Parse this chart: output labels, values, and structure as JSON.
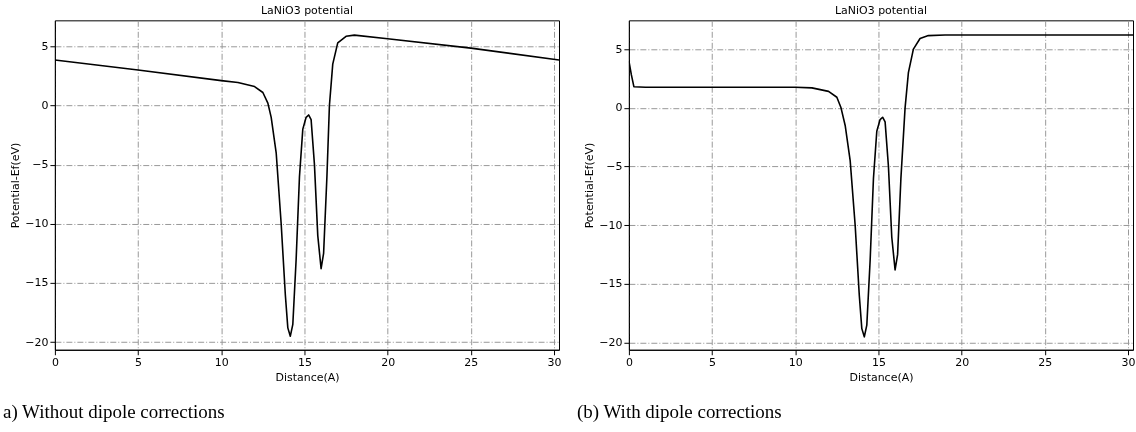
{
  "chart_data": [
    {
      "type": "line",
      "title": "LaNiO3 potential",
      "xlabel": "Distance(A)",
      "ylabel": "Potential-Ef(eV)",
      "annotations": [
        "a) Without dipole corrections"
      ],
      "xlim": [
        0,
        30.3
      ],
      "ylim": [
        -20.65,
        7.2
      ],
      "xticks": [
        0,
        5,
        10,
        15,
        20,
        25,
        30
      ],
      "yticks": [
        -20,
        -15,
        -10,
        -5,
        0,
        5
      ],
      "grid": true,
      "line_style": "solid",
      "series": [
        {
          "color": "#000000",
          "x": [
            0,
            5,
            10,
            11,
            12,
            12.5,
            12.8,
            13,
            13.3,
            13.6,
            13.85,
            14,
            14.15,
            14.3,
            14.5,
            14.7,
            14.9,
            15.1,
            15.25,
            15.4,
            15.6,
            15.8,
            16.0,
            16.15,
            16.35,
            16.5,
            16.7,
            17,
            17.5,
            18,
            20,
            25,
            30.3
          ],
          "values": [
            3.85,
            3.0,
            2.1,
            1.95,
            1.6,
            1.1,
            0.2,
            -1,
            -4,
            -10,
            -16,
            -18.8,
            -19.5,
            -18.5,
            -13,
            -6,
            -2,
            -1,
            -0.8,
            -1.2,
            -5,
            -11,
            -13.8,
            -12.5,
            -6,
            0,
            3.5,
            5.3,
            5.85,
            5.95,
            5.65,
            4.85,
            3.85
          ]
        }
      ]
    },
    {
      "type": "line",
      "title": "LaNiO3 potential",
      "xlabel": "Distance(A)",
      "ylabel": "Potential-Ef(eV)",
      "annotations": [
        "(b) With dipole corrections"
      ],
      "xlim": [
        0,
        30.3
      ],
      "ylim": [
        -20.6,
        7.45
      ],
      "xticks": [
        0,
        5,
        10,
        15,
        20,
        25,
        30
      ],
      "yticks": [
        -20,
        -15,
        -10,
        -5,
        0,
        5
      ],
      "grid": true,
      "line_style": "solid",
      "series": [
        {
          "color": "#000000",
          "x": [
            0,
            0.15,
            0.3,
            1,
            10,
            11,
            12,
            12.5,
            12.75,
            13,
            13.3,
            13.6,
            13.85,
            14,
            14.15,
            14.3,
            14.5,
            14.7,
            14.9,
            15.1,
            15.25,
            15.4,
            15.6,
            15.8,
            16.0,
            16.15,
            16.35,
            16.6,
            16.8,
            17.1,
            17.5,
            18,
            19,
            30.3
          ],
          "values": [
            4.0,
            2.8,
            1.8,
            1.75,
            1.75,
            1.7,
            1.4,
            0.9,
            0,
            -1.5,
            -4.5,
            -10,
            -16,
            -18.8,
            -19.5,
            -18.5,
            -13,
            -6,
            -2,
            -1,
            -0.8,
            -1.2,
            -5,
            -11,
            -13.8,
            -12.5,
            -6,
            0,
            3,
            5,
            5.9,
            6.15,
            6.2,
            6.2
          ]
        }
      ]
    }
  ]
}
